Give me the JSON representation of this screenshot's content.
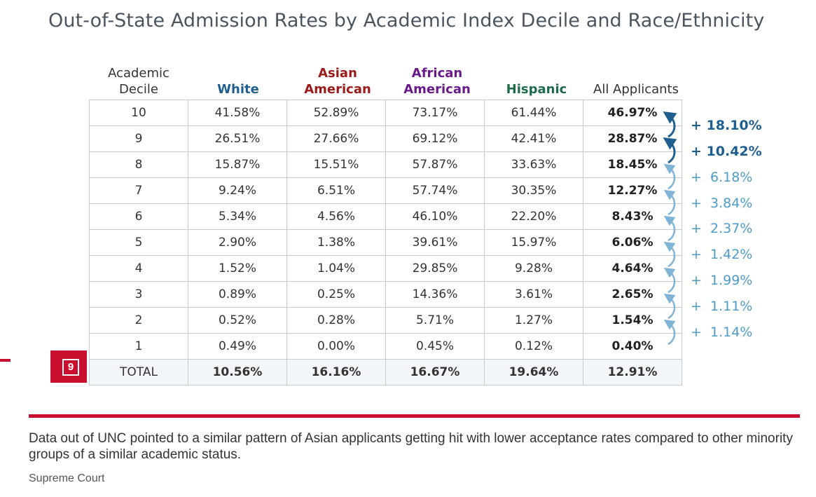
{
  "title": "Out-of-State Admission Rates by Academic Index Decile and Race/Ethnicity",
  "headers": {
    "decile_line1": "Academic",
    "decile_line2": "Decile",
    "white": "White",
    "asian_line1": "Asian",
    "asian_line2": "American",
    "african_line1": "African",
    "african_line2": "American",
    "hispanic": "Hispanic",
    "all": "All Applicants"
  },
  "colors": {
    "white": "#1f5f8f",
    "asian": "#9b1b1b",
    "african": "#6a1b8a",
    "hispanic": "#1e6b4a",
    "accent_red": "#c8102e"
  },
  "rows": [
    {
      "decile": "10",
      "white": "41.58%",
      "asian": "52.89%",
      "african": "73.17%",
      "hispanic": "61.44%",
      "all": "46.97%"
    },
    {
      "decile": "9",
      "white": "26.51%",
      "asian": "27.66%",
      "african": "69.12%",
      "hispanic": "42.41%",
      "all": "28.87%"
    },
    {
      "decile": "8",
      "white": "15.87%",
      "asian": "15.51%",
      "african": "57.87%",
      "hispanic": "33.63%",
      "all": "18.45%"
    },
    {
      "decile": "7",
      "white": "9.24%",
      "asian": "6.51%",
      "african": "57.74%",
      "hispanic": "30.35%",
      "all": "12.27%"
    },
    {
      "decile": "6",
      "white": "5.34%",
      "asian": "4.56%",
      "african": "46.10%",
      "hispanic": "22.20%",
      "all": "8.43%"
    },
    {
      "decile": "5",
      "white": "2.90%",
      "asian": "1.38%",
      "african": "39.61%",
      "hispanic": "15.97%",
      "all": "6.06%"
    },
    {
      "decile": "4",
      "white": "1.52%",
      "asian": "1.04%",
      "african": "29.85%",
      "hispanic": "9.28%",
      "all": "4.64%"
    },
    {
      "decile": "3",
      "white": "0.89%",
      "asian": "0.25%",
      "african": "14.36%",
      "hispanic": "3.61%",
      "all": "2.65%"
    },
    {
      "decile": "2",
      "white": "0.52%",
      "asian": "0.28%",
      "african": "5.71%",
      "hispanic": "1.27%",
      "all": "1.54%"
    },
    {
      "decile": "1",
      "white": "0.49%",
      "asian": "0.00%",
      "african": "0.45%",
      "hispanic": "0.12%",
      "all": "0.40%"
    }
  ],
  "total": {
    "decile": "TOTAL",
    "white": "10.56%",
    "asian": "16.16%",
    "african": "16.67%",
    "hispanic": "19.64%",
    "all": "12.91%"
  },
  "gains": [
    "+ 18.10%",
    "+ 10.42%",
    "+  6.18%",
    "+  3.84%",
    "+  2.37%",
    "+  1.42%",
    "+  1.99%",
    "+  1.11%",
    "+  1.14%"
  ],
  "badge_number": "9",
  "caption": "Data out of UNC pointed to a similar pattern of Asian applicants getting hit with lower acceptance rates compared to other minority groups of a similar academic status.",
  "credit": "Supreme Court"
}
